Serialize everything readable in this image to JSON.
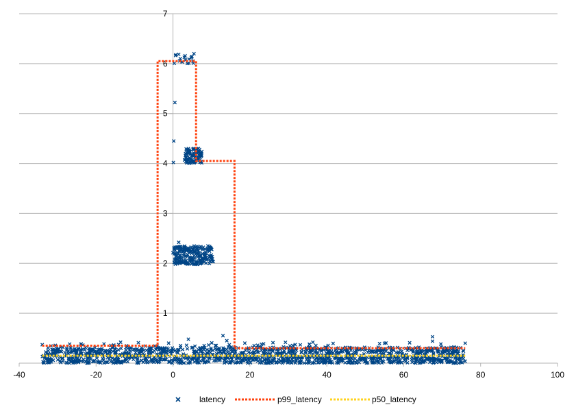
{
  "chart_data": {
    "type": "scatter",
    "xlim": [
      -40,
      100
    ],
    "ylim": [
      0,
      7
    ],
    "x_ticks": [
      -40,
      -20,
      0,
      20,
      40,
      60,
      80,
      100
    ],
    "y_ticks": [
      1,
      2,
      3,
      4,
      5,
      6,
      7
    ],
    "grid": {
      "horizontal": true,
      "vertical": false
    },
    "legend_position": "bottom",
    "series": [
      {
        "name": "latency",
        "kind": "scatter",
        "marker": "x",
        "color": "#004586",
        "clusters": [
          {
            "x_range": [
              -34,
              76
            ],
            "y_range": [
              0.0,
              0.32
            ],
            "count": 1400
          },
          {
            "x_range": [
              -34,
              76
            ],
            "y_range": [
              0.3,
              0.42
            ],
            "count": 60
          },
          {
            "x_range": [
              0,
              10.5
            ],
            "y_range": [
              1.98,
              2.35
            ],
            "count": 220
          },
          {
            "x_range": [
              3,
              7.5
            ],
            "y_range": [
              4.0,
              4.3
            ],
            "count": 90
          },
          {
            "x_range": [
              0,
              6
            ],
            "y_range": [
              6.0,
              6.2
            ],
            "count": 20
          }
        ],
        "points": [
          {
            "x": 0.5,
            "y": 5.22
          },
          {
            "x": 0.2,
            "y": 4.45
          },
          {
            "x": 0.1,
            "y": 4.02
          },
          {
            "x": 0.3,
            "y": 2.02
          },
          {
            "x": 1.5,
            "y": 2.42
          },
          {
            "x": 4.0,
            "y": 0.48
          },
          {
            "x": 13.0,
            "y": 0.55
          },
          {
            "x": 14.0,
            "y": 0.45
          },
          {
            "x": 67.5,
            "y": 0.53
          },
          {
            "x": 67.5,
            "y": 0.44
          },
          {
            "x": 76.0,
            "y": 0.4
          },
          {
            "x": -34.0,
            "y": 0.37
          },
          {
            "x": -9.0,
            "y": 0.41
          },
          {
            "x": 26.0,
            "y": 0.41
          },
          {
            "x": 55.0,
            "y": 0.4
          }
        ]
      },
      {
        "name": "p99_latency",
        "kind": "step",
        "color": "#ff420e",
        "dash": "dotted",
        "x": [
          -34,
          -4,
          -4,
          6,
          6,
          16,
          16,
          76
        ],
        "y": [
          0.35,
          0.35,
          6.05,
          6.05,
          4.05,
          4.05,
          0.3,
          0.3
        ]
      },
      {
        "name": "p50_latency",
        "kind": "step",
        "color": "#ffd320",
        "dash": "dotted",
        "x": [
          -34,
          76
        ],
        "y": [
          0.15,
          0.15
        ]
      }
    ]
  }
}
